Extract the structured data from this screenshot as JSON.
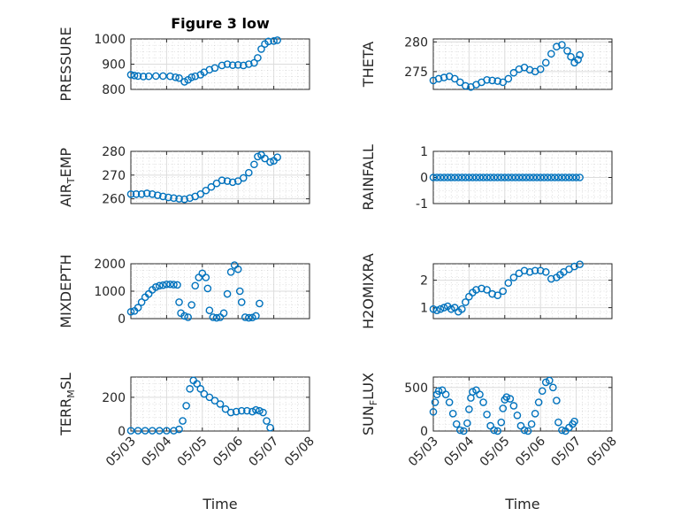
{
  "figure": {
    "title": "Figure 3 low",
    "marker_color": "#0072BD",
    "xlabel": "Time",
    "date_ticks": [
      "05/03",
      "05/04",
      "05/05",
      "05/06",
      "05/07",
      "05/08"
    ]
  },
  "chart_data": [
    {
      "type": "scatter",
      "ylabel": "PRESSURE",
      "title": "Figure 3 low",
      "ylim": [
        800,
        1000
      ],
      "yticks": [
        "800",
        "900",
        "1000"
      ],
      "xlim": [
        "05/03",
        "05/08"
      ],
      "grid": true,
      "points": [
        [
          3.0,
          858
        ],
        [
          3.1,
          855
        ],
        [
          3.2,
          853
        ],
        [
          3.35,
          851
        ],
        [
          3.5,
          852
        ],
        [
          3.7,
          853
        ],
        [
          3.9,
          853
        ],
        [
          4.1,
          852
        ],
        [
          4.25,
          848
        ],
        [
          4.35,
          845
        ],
        [
          4.5,
          830
        ],
        [
          4.6,
          838
        ],
        [
          4.7,
          848
        ],
        [
          4.8,
          852
        ],
        [
          4.95,
          858
        ],
        [
          5.05,
          868
        ],
        [
          5.2,
          878
        ],
        [
          5.35,
          885
        ],
        [
          5.55,
          895
        ],
        [
          5.7,
          900
        ],
        [
          5.85,
          896
        ],
        [
          6.0,
          897
        ],
        [
          6.15,
          895
        ],
        [
          6.3,
          900
        ],
        [
          6.45,
          905
        ],
        [
          6.55,
          925
        ],
        [
          6.65,
          960
        ],
        [
          6.75,
          980
        ],
        [
          6.85,
          990
        ],
        [
          7.0,
          992
        ],
        [
          7.1,
          995
        ]
      ]
    },
    {
      "type": "scatter",
      "ylabel": "THETA",
      "ylim": [
        272,
        280.5
      ],
      "yticks": [
        "275",
        "280"
      ],
      "xlim": [
        "05/03",
        "05/08"
      ],
      "grid": true,
      "points": [
        [
          3.0,
          273.5
        ],
        [
          3.15,
          273.8
        ],
        [
          3.3,
          274.0
        ],
        [
          3.45,
          274.2
        ],
        [
          3.6,
          273.8
        ],
        [
          3.75,
          273.2
        ],
        [
          3.9,
          272.6
        ],
        [
          4.05,
          272.4
        ],
        [
          4.2,
          272.8
        ],
        [
          4.35,
          273.2
        ],
        [
          4.5,
          273.6
        ],
        [
          4.65,
          273.5
        ],
        [
          4.8,
          273.4
        ],
        [
          4.95,
          273.2
        ],
        [
          5.1,
          273.8
        ],
        [
          5.25,
          274.8
        ],
        [
          5.4,
          275.4
        ],
        [
          5.55,
          275.7
        ],
        [
          5.7,
          275.3
        ],
        [
          5.85,
          275.0
        ],
        [
          6.0,
          275.4
        ],
        [
          6.15,
          276.5
        ],
        [
          6.3,
          278.0
        ],
        [
          6.45,
          279.2
        ],
        [
          6.6,
          279.5
        ],
        [
          6.75,
          278.5
        ],
        [
          6.85,
          277.5
        ],
        [
          6.95,
          276.5
        ],
        [
          7.05,
          277.0
        ],
        [
          7.1,
          277.8
        ]
      ]
    },
    {
      "type": "scatter",
      "ylabel": "AIR_TEMP",
      "ylim": [
        258,
        280
      ],
      "yticks": [
        "260",
        "270",
        "280"
      ],
      "xlim": [
        "05/03",
        "05/08"
      ],
      "grid": true,
      "points": [
        [
          3.0,
          262
        ],
        [
          3.15,
          262
        ],
        [
          3.3,
          262
        ],
        [
          3.45,
          262.3
        ],
        [
          3.6,
          262
        ],
        [
          3.75,
          261.5
        ],
        [
          3.9,
          261
        ],
        [
          4.05,
          260.6
        ],
        [
          4.2,
          260.3
        ],
        [
          4.35,
          260.0
        ],
        [
          4.5,
          259.8
        ],
        [
          4.65,
          260.3
        ],
        [
          4.8,
          261
        ],
        [
          4.95,
          262
        ],
        [
          5.1,
          263.5
        ],
        [
          5.25,
          265
        ],
        [
          5.4,
          266.5
        ],
        [
          5.55,
          267.8
        ],
        [
          5.7,
          267.5
        ],
        [
          5.85,
          267.0
        ],
        [
          6.0,
          267.5
        ],
        [
          6.15,
          268.8
        ],
        [
          6.3,
          271
        ],
        [
          6.45,
          274.5
        ],
        [
          6.55,
          277.8
        ],
        [
          6.65,
          278.5
        ],
        [
          6.75,
          277
        ],
        [
          6.9,
          275.5
        ],
        [
          7.0,
          276
        ],
        [
          7.1,
          277.5
        ]
      ]
    },
    {
      "type": "scatter",
      "ylabel": "RAINFALL",
      "ylim": [
        -1,
        1
      ],
      "yticks": [
        "-1",
        "0",
        "1"
      ],
      "xlim": [
        "05/03",
        "05/08"
      ],
      "grid": true,
      "points": [
        [
          3.0,
          0
        ],
        [
          3.1,
          0
        ],
        [
          3.2,
          0
        ],
        [
          3.3,
          0
        ],
        [
          3.4,
          0
        ],
        [
          3.5,
          0
        ],
        [
          3.6,
          0
        ],
        [
          3.7,
          0
        ],
        [
          3.8,
          0
        ],
        [
          3.9,
          0
        ],
        [
          4.0,
          0
        ],
        [
          4.1,
          0
        ],
        [
          4.2,
          0
        ],
        [
          4.3,
          0
        ],
        [
          4.4,
          0
        ],
        [
          4.5,
          0
        ],
        [
          4.6,
          0
        ],
        [
          4.7,
          0
        ],
        [
          4.8,
          0
        ],
        [
          4.9,
          0
        ],
        [
          5.0,
          0
        ],
        [
          5.1,
          0
        ],
        [
          5.2,
          0
        ],
        [
          5.3,
          0
        ],
        [
          5.4,
          0
        ],
        [
          5.5,
          0
        ],
        [
          5.6,
          0
        ],
        [
          5.7,
          0
        ],
        [
          5.8,
          0
        ],
        [
          5.9,
          0
        ],
        [
          6.0,
          0
        ],
        [
          6.1,
          0
        ],
        [
          6.2,
          0
        ],
        [
          6.3,
          0
        ],
        [
          6.4,
          0
        ],
        [
          6.5,
          0
        ],
        [
          6.6,
          0
        ],
        [
          6.7,
          0
        ],
        [
          6.8,
          0
        ],
        [
          6.9,
          0
        ],
        [
          7.0,
          0
        ],
        [
          7.1,
          0
        ]
      ]
    },
    {
      "type": "scatter",
      "ylabel": "MIXDEPTH",
      "ylim": [
        0,
        2000
      ],
      "yticks": [
        "0",
        "1000",
        "2000"
      ],
      "xlim": [
        "05/03",
        "05/08"
      ],
      "grid": true,
      "points": [
        [
          3.0,
          250
        ],
        [
          3.1,
          280
        ],
        [
          3.2,
          400
        ],
        [
          3.3,
          600
        ],
        [
          3.4,
          780
        ],
        [
          3.5,
          900
        ],
        [
          3.6,
          1050
        ],
        [
          3.7,
          1150
        ],
        [
          3.8,
          1200
        ],
        [
          3.9,
          1220
        ],
        [
          4.0,
          1250
        ],
        [
          4.1,
          1250
        ],
        [
          4.2,
          1240
        ],
        [
          4.3,
          1230
        ],
        [
          4.35,
          600
        ],
        [
          4.4,
          200
        ],
        [
          4.5,
          100
        ],
        [
          4.6,
          50
        ],
        [
          4.7,
          500
        ],
        [
          4.8,
          1200
        ],
        [
          4.9,
          1500
        ],
        [
          5.0,
          1650
        ],
        [
          5.1,
          1500
        ],
        [
          5.15,
          1100
        ],
        [
          5.2,
          300
        ],
        [
          5.3,
          50
        ],
        [
          5.4,
          30
        ],
        [
          5.5,
          50
        ],
        [
          5.6,
          200
        ],
        [
          5.7,
          900
        ],
        [
          5.8,
          1700
        ],
        [
          5.9,
          1950
        ],
        [
          6.0,
          1800
        ],
        [
          6.05,
          1000
        ],
        [
          6.1,
          600
        ],
        [
          6.2,
          50
        ],
        [
          6.3,
          30
        ],
        [
          6.4,
          40
        ],
        [
          6.5,
          100
        ],
        [
          6.6,
          550
        ]
      ]
    },
    {
      "type": "scatter",
      "ylabel": "H2OMIXRA",
      "ylim": [
        0.6,
        2.6
      ],
      "yticks": [
        "1",
        "2"
      ],
      "xlim": [
        "05/03",
        "05/08"
      ],
      "grid": true,
      "points": [
        [
          3.0,
          0.95
        ],
        [
          3.1,
          0.9
        ],
        [
          3.2,
          0.95
        ],
        [
          3.3,
          1.0
        ],
        [
          3.4,
          1.05
        ],
        [
          3.5,
          0.95
        ],
        [
          3.6,
          1.0
        ],
        [
          3.7,
          0.85
        ],
        [
          3.8,
          0.95
        ],
        [
          3.9,
          1.2
        ],
        [
          4.0,
          1.4
        ],
        [
          4.1,
          1.55
        ],
        [
          4.2,
          1.65
        ],
        [
          4.35,
          1.7
        ],
        [
          4.5,
          1.65
        ],
        [
          4.65,
          1.5
        ],
        [
          4.8,
          1.45
        ],
        [
          4.95,
          1.6
        ],
        [
          5.1,
          1.9
        ],
        [
          5.25,
          2.1
        ],
        [
          5.4,
          2.25
        ],
        [
          5.55,
          2.35
        ],
        [
          5.7,
          2.3
        ],
        [
          5.85,
          2.35
        ],
        [
          6.0,
          2.35
        ],
        [
          6.15,
          2.3
        ],
        [
          6.3,
          2.05
        ],
        [
          6.45,
          2.1
        ],
        [
          6.55,
          2.2
        ],
        [
          6.65,
          2.3
        ],
        [
          6.8,
          2.4
        ],
        [
          6.95,
          2.5
        ],
        [
          7.1,
          2.58
        ]
      ]
    },
    {
      "type": "scatter",
      "ylabel": "TERR_MSL",
      "ylim": [
        0,
        320
      ],
      "yticks": [
        "0",
        "200"
      ],
      "xlim": [
        "05/03",
        "05/08"
      ],
      "grid": true,
      "points": [
        [
          3.0,
          2
        ],
        [
          3.2,
          2
        ],
        [
          3.4,
          2
        ],
        [
          3.6,
          2
        ],
        [
          3.8,
          2
        ],
        [
          4.0,
          2
        ],
        [
          4.2,
          2
        ],
        [
          4.35,
          10
        ],
        [
          4.45,
          60
        ],
        [
          4.55,
          150
        ],
        [
          4.65,
          250
        ],
        [
          4.75,
          300
        ],
        [
          4.85,
          280
        ],
        [
          4.95,
          250
        ],
        [
          5.05,
          220
        ],
        [
          5.2,
          200
        ],
        [
          5.35,
          180
        ],
        [
          5.5,
          160
        ],
        [
          5.65,
          130
        ],
        [
          5.8,
          110
        ],
        [
          5.95,
          115
        ],
        [
          6.1,
          120
        ],
        [
          6.25,
          120
        ],
        [
          6.4,
          115
        ],
        [
          6.5,
          125
        ],
        [
          6.6,
          120
        ],
        [
          6.7,
          110
        ],
        [
          6.8,
          60
        ],
        [
          6.9,
          20
        ]
      ]
    },
    {
      "type": "scatter",
      "ylabel": "SUN_FLUX",
      "ylim": [
        0,
        620
      ],
      "yticks": [
        "0",
        "500"
      ],
      "xlim": [
        "05/03",
        "05/08"
      ],
      "grid": true,
      "points": [
        [
          3.0,
          220
        ],
        [
          3.05,
          330
        ],
        [
          3.1,
          420
        ],
        [
          3.15,
          460
        ],
        [
          3.25,
          470
        ],
        [
          3.35,
          420
        ],
        [
          3.45,
          330
        ],
        [
          3.55,
          200
        ],
        [
          3.65,
          80
        ],
        [
          3.75,
          10
        ],
        [
          3.85,
          0
        ],
        [
          3.95,
          90
        ],
        [
          4.0,
          250
        ],
        [
          4.05,
          380
        ],
        [
          4.1,
          450
        ],
        [
          4.2,
          470
        ],
        [
          4.3,
          420
        ],
        [
          4.4,
          330
        ],
        [
          4.5,
          190
        ],
        [
          4.6,
          60
        ],
        [
          4.7,
          10
        ],
        [
          4.8,
          0
        ],
        [
          4.9,
          100
        ],
        [
          4.95,
          260
        ],
        [
          5.0,
          360
        ],
        [
          5.05,
          390
        ],
        [
          5.15,
          370
        ],
        [
          5.25,
          290
        ],
        [
          5.35,
          180
        ],
        [
          5.45,
          60
        ],
        [
          5.55,
          10
        ],
        [
          5.65,
          0
        ],
        [
          5.75,
          80
        ],
        [
          5.85,
          200
        ],
        [
          5.95,
          330
        ],
        [
          6.05,
          460
        ],
        [
          6.15,
          560
        ],
        [
          6.25,
          580
        ],
        [
          6.35,
          500
        ],
        [
          6.45,
          350
        ],
        [
          6.5,
          100
        ],
        [
          6.6,
          10
        ],
        [
          6.7,
          0
        ],
        [
          6.8,
          40
        ],
        [
          6.9,
          80
        ],
        [
          6.95,
          110
        ]
      ]
    }
  ]
}
